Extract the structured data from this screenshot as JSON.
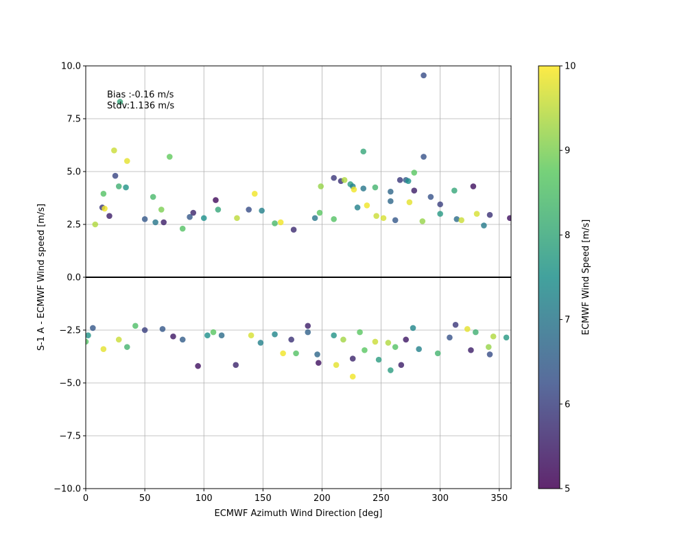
{
  "chart_data": {
    "type": "scatter",
    "title": "",
    "xlabel": "ECMWF Azimuth Wind Direction [deg]",
    "ylabel": "S-1 A - ECMWF Wind speed [m/s]",
    "xlim": [
      0,
      360
    ],
    "ylim": [
      -10,
      10
    ],
    "xticks": [
      "0",
      "50",
      "100",
      "150",
      "200",
      "250",
      "300",
      "350"
    ],
    "yticks": [
      "−10.0",
      "−7.5",
      "−5.0",
      "−2.5",
      "0.0",
      "2.5",
      "5.0",
      "7.5",
      "10.0"
    ],
    "grid": true,
    "annotation": [
      "Bias :-0.16 m/s",
      "Stdv:1.136 m/s"
    ],
    "zero_line": 0,
    "colorbar": {
      "label": "ECMWF Wind Speed [m/s]",
      "range": [
        5,
        10
      ],
      "ticks": [
        "5",
        "6",
        "7",
        "8",
        "9",
        "10"
      ],
      "colormap": "viridis",
      "colors": [
        "#440154",
        "#3b528b",
        "#21918c",
        "#5ec962",
        "#fde725"
      ]
    },
    "points": [
      [
        286,
        9.55,
        6.2
      ],
      [
        29,
        8.3,
        8.0
      ],
      [
        24,
        6.0,
        9.6
      ],
      [
        35,
        5.5,
        9.8
      ],
      [
        71,
        5.7,
        8.8
      ],
      [
        286,
        5.7,
        6.3
      ],
      [
        235,
        5.95,
        8.0
      ],
      [
        25,
        4.8,
        6.1
      ],
      [
        28,
        4.3,
        8.2
      ],
      [
        34,
        4.25,
        7.6
      ],
      [
        278,
        4.95,
        8.7
      ],
      [
        328,
        4.3,
        5.3
      ],
      [
        312,
        4.1,
        8.0
      ],
      [
        210,
        4.7,
        5.9
      ],
      [
        199,
        4.3,
        9.2
      ],
      [
        216,
        4.55,
        5.8
      ],
      [
        219,
        4.6,
        9.4
      ],
      [
        224,
        4.4,
        7.8
      ],
      [
        226,
        4.3,
        7.2
      ],
      [
        227,
        4.15,
        9.9
      ],
      [
        235,
        4.2,
        7.0
      ],
      [
        245,
        4.25,
        8.3
      ],
      [
        258,
        4.05,
        6.7
      ],
      [
        266,
        4.6,
        5.9
      ],
      [
        271,
        4.6,
        6.5
      ],
      [
        273,
        4.55,
        7.5
      ],
      [
        278,
        4.1,
        5.5
      ],
      [
        292,
        3.8,
        6.3
      ],
      [
        143,
        3.95,
        9.9
      ],
      [
        149,
        3.15,
        7.2
      ],
      [
        14,
        3.3,
        5.9
      ],
      [
        15,
        3.95,
        8.6
      ],
      [
        57,
        3.8,
        8.4
      ],
      [
        64,
        3.2,
        9.0
      ],
      [
        110,
        3.65,
        5.2
      ],
      [
        112,
        3.2,
        8.0
      ],
      [
        138,
        3.2,
        6.2
      ],
      [
        128,
        2.8,
        9.5
      ],
      [
        91,
        3.05,
        5.6
      ],
      [
        16,
        3.25,
        9.9
      ],
      [
        88,
        2.85,
        6.4
      ],
      [
        100,
        2.8,
        7.5
      ],
      [
        194,
        2.8,
        7.0
      ],
      [
        210,
        2.75,
        8.6
      ],
      [
        230,
        3.3,
        7.2
      ],
      [
        238,
        3.4,
        9.9
      ],
      [
        246,
        2.9,
        9.6
      ],
      [
        258,
        3.6,
        6.7
      ],
      [
        274,
        3.55,
        9.8
      ],
      [
        300,
        3.45,
        6.0
      ],
      [
        300,
        3.0,
        7.7
      ],
      [
        331,
        3.0,
        9.7
      ],
      [
        342,
        2.95,
        5.8
      ],
      [
        359,
        2.8,
        5.3
      ],
      [
        165,
        2.6,
        9.9
      ],
      [
        20,
        2.9,
        5.5
      ],
      [
        8,
        2.5,
        9.4
      ],
      [
        50,
        2.75,
        6.4
      ],
      [
        59,
        2.6,
        7.0
      ],
      [
        66,
        2.6,
        5.5
      ],
      [
        82,
        2.3,
        8.6
      ],
      [
        160,
        2.55,
        8.4
      ],
      [
        176,
        2.25,
        5.7
      ],
      [
        198,
        3.05,
        8.7
      ],
      [
        252,
        2.8,
        9.7
      ],
      [
        262,
        2.7,
        6.4
      ],
      [
        285,
        2.65,
        9.2
      ],
      [
        314,
        2.75,
        6.8
      ],
      [
        318,
        2.7,
        9.6
      ],
      [
        337,
        2.45,
        7.1
      ],
      [
        95,
        -4.2,
        5.3
      ],
      [
        127,
        -4.15,
        5.6
      ],
      [
        226,
        -4.7,
        9.9
      ],
      [
        258,
        -4.4,
        7.8
      ],
      [
        267,
        -4.15,
        5.5
      ],
      [
        15,
        -3.4,
        9.8
      ],
      [
        35,
        -3.3,
        8.3
      ],
      [
        82,
        -2.95,
        6.5
      ],
      [
        167,
        -3.6,
        9.9
      ],
      [
        178,
        -3.6,
        8.6
      ],
      [
        196,
        -3.65,
        6.7
      ],
      [
        197,
        -4.05,
        5.3
      ],
      [
        212,
        -4.15,
        9.8
      ],
      [
        226,
        -3.85,
        5.6
      ],
      [
        236,
        -3.45,
        8.7
      ],
      [
        248,
        -3.9,
        7.8
      ],
      [
        256,
        -3.1,
        9.4
      ],
      [
        262,
        -3.3,
        8.6
      ],
      [
        282,
        -3.4,
        7.2
      ],
      [
        298,
        -3.6,
        8.3
      ],
      [
        326,
        -3.45,
        5.5
      ],
      [
        342,
        -3.65,
        6.2
      ],
      [
        341,
        -3.3,
        9.2
      ],
      [
        148,
        -3.1,
        7.2
      ],
      [
        115,
        -2.75,
        6.8
      ],
      [
        103,
        -2.75,
        7.5
      ],
      [
        174,
        -2.95,
        5.8
      ],
      [
        210,
        -2.75,
        7.6
      ],
      [
        218,
        -2.95,
        9.3
      ],
      [
        271,
        -2.95,
        5.4
      ],
      [
        308,
        -2.85,
        6.3
      ],
      [
        356,
        -2.85,
        7.7
      ],
      [
        0,
        -3.05,
        8.6
      ],
      [
        2,
        -2.75,
        7.6
      ],
      [
        28,
        -2.95,
        9.6
      ],
      [
        65,
        -2.45,
        6.4
      ],
      [
        50,
        -2.5,
        6.0
      ],
      [
        140,
        -2.75,
        9.7
      ],
      [
        108,
        -2.6,
        8.7
      ],
      [
        245,
        -3.05,
        9.6
      ],
      [
        323,
        -2.45,
        9.8
      ],
      [
        345,
        -2.8,
        9.4
      ],
      [
        74,
        -2.8,
        5.4
      ],
      [
        160,
        -2.7,
        7.3
      ],
      [
        188,
        -2.6,
        6.6
      ],
      [
        232,
        -2.6,
        8.7
      ],
      [
        277,
        -2.4,
        7.3
      ],
      [
        313,
        -2.25,
        5.9
      ],
      [
        330,
        -2.6,
        8.2
      ],
      [
        6,
        -2.4,
        6.4
      ],
      [
        42,
        -2.3,
        8.5
      ],
      [
        188,
        -2.3,
        5.5
      ]
    ]
  }
}
